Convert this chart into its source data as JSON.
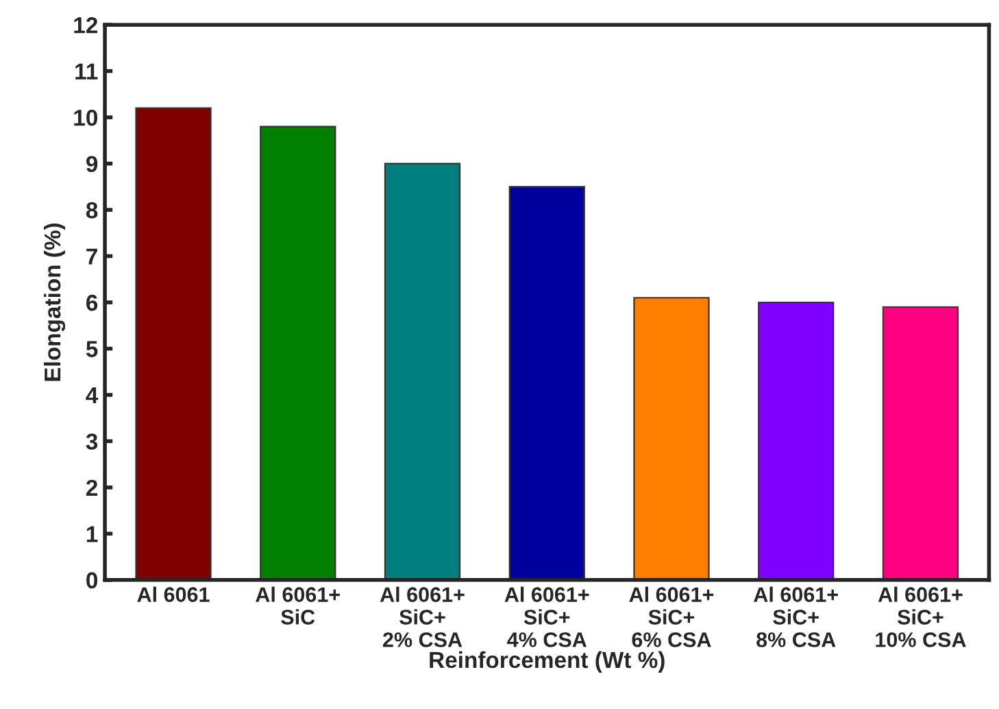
{
  "chart_data": {
    "type": "bar",
    "categories": [
      "Al 6061",
      "Al 6061+\nSiC",
      "Al 6061+\nSiC+\n2% CSA",
      "Al 6061+\nSiC+\n4% CSA",
      "Al 6061+\nSiC+\n6% CSA",
      "Al 6061+\nSiC+\n8% CSA",
      "Al 6061+\nSiC+\n10% CSA"
    ],
    "values": [
      10.2,
      9.8,
      9.0,
      8.5,
      6.1,
      6.0,
      5.9
    ],
    "colors": [
      "#7f0000",
      "#007f00",
      "#007f7f",
      "#00009f",
      "#ff7f00",
      "#7f00ff",
      "#ff0080"
    ],
    "xlabel": "Reinforcement (Wt %)",
    "ylabel": "Elongation (%)",
    "ylim": [
      0,
      12
    ],
    "yticks": [
      0,
      1,
      2,
      3,
      4,
      5,
      6,
      7,
      8,
      9,
      10,
      11,
      12
    ],
    "grid": false,
    "legend": false
  }
}
